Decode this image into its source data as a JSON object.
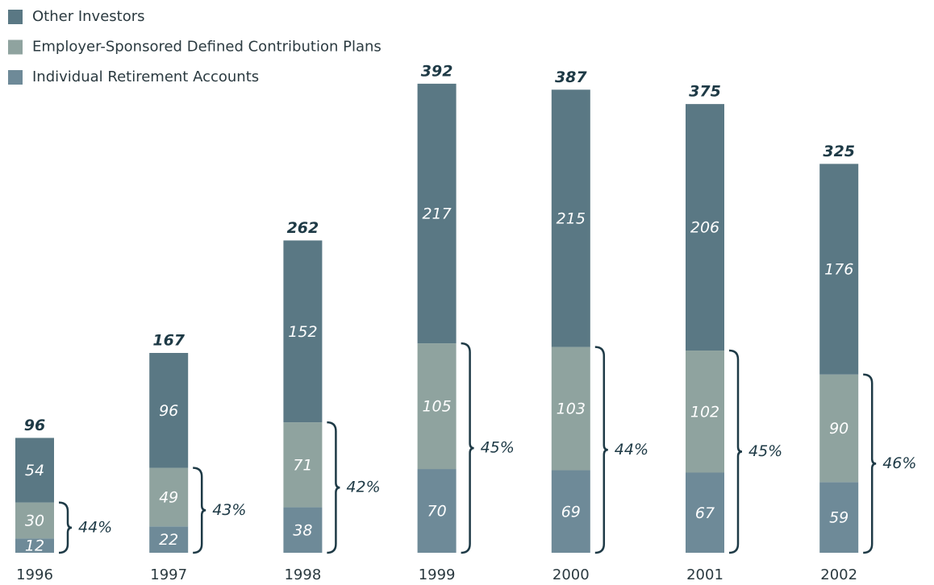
{
  "chart_data": {
    "type": "stacked_bar",
    "categories": [
      "1996",
      "1997",
      "1998",
      "1999",
      "2000",
      "2001",
      "2002"
    ],
    "series": [
      {
        "name": "Other Investors",
        "color": "#5a7884",
        "values": [
          54,
          96,
          152,
          217,
          215,
          206,
          176
        ]
      },
      {
        "name": "Employer-Sponsored Defined Contribution Plans",
        "color": "#8fa39f",
        "values": [
          30,
          49,
          71,
          105,
          103,
          102,
          90
        ]
      },
      {
        "name": "Individual Retirement Accounts",
        "color": "#6e8a98",
        "values": [
          12,
          22,
          38,
          70,
          69,
          67,
          59
        ]
      }
    ],
    "totals": [
      96,
      167,
      262,
      392,
      387,
      375,
      325
    ],
    "retirement_share": {
      "values": [
        44,
        43,
        42,
        45,
        44,
        45,
        46
      ],
      "value_labels": [
        "44%",
        "43%",
        "42%",
        "45%",
        "44%",
        "45%",
        "46%"
      ]
    }
  }
}
